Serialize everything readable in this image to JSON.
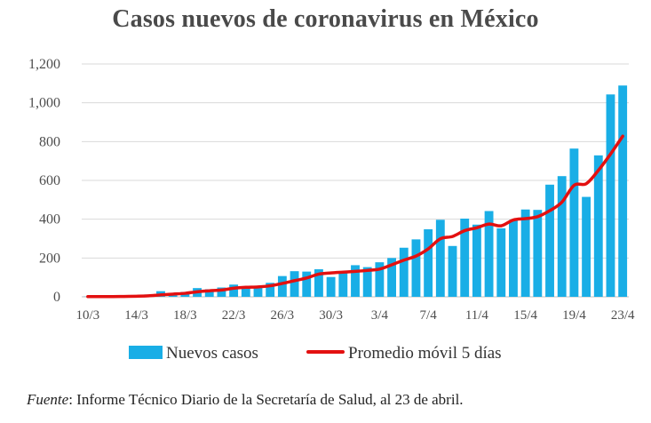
{
  "chart_data": {
    "type": "bar",
    "title": "Casos nuevos de coronavirus en México",
    "xlabel": "",
    "ylabel": "",
    "ylim": [
      0,
      1200
    ],
    "yticks": [
      "0",
      "200",
      "400",
      "600",
      "800",
      "1,000",
      "1,200"
    ],
    "ytick_values": [
      0,
      200,
      400,
      600,
      800,
      1000,
      1200
    ],
    "xtick_labels": [
      "10/3",
      "14/3",
      "18/3",
      "22/3",
      "26/3",
      "30/3",
      "3/4",
      "7/4",
      "11/4",
      "15/4",
      "19/4",
      "23/4"
    ],
    "categories": [
      "10/3",
      "11/3",
      "12/3",
      "13/3",
      "14/3",
      "15/3",
      "16/3",
      "17/3",
      "18/3",
      "19/3",
      "20/3",
      "21/3",
      "22/3",
      "23/3",
      "24/3",
      "25/3",
      "26/3",
      "27/3",
      "28/3",
      "29/3",
      "30/3",
      "31/3",
      "1/4",
      "2/4",
      "3/4",
      "4/4",
      "5/4",
      "6/4",
      "7/4",
      "8/4",
      "9/4",
      "10/4",
      "11/4",
      "12/4",
      "13/4",
      "14/4",
      "15/4",
      "16/4",
      "17/4",
      "18/4",
      "19/4",
      "20/4",
      "21/4",
      "22/4",
      "23/4"
    ],
    "series": [
      {
        "name": "Nuevos casos",
        "type": "bar",
        "color": "#19aee6",
        "values": [
          1,
          1,
          1,
          3,
          6,
          12,
          29,
          19,
          25,
          45,
          39,
          48,
          63,
          52,
          52,
          72,
          107,
          132,
          130,
          142,
          102,
          129,
          163,
          153,
          178,
          200,
          253,
          296,
          348,
          397,
          262,
          403,
          372,
          442,
          353,
          396,
          450,
          448,
          578,
          622,
          764,
          515,
          729,
          1043,
          1089
        ]
      },
      {
        "name": "Promedio móvil 5 días",
        "type": "line",
        "color": "#e31010",
        "values": [
          1,
          1,
          1,
          2,
          3,
          5,
          10,
          14,
          18,
          26,
          31,
          35,
          44,
          49,
          51,
          57,
          69,
          83,
          97,
          117,
          123,
          127,
          131,
          136,
          143,
          165,
          189,
          210,
          247,
          299,
          311,
          341,
          356,
          375,
          366,
          396,
          403,
          413,
          444,
          488,
          575,
          583,
          652,
          736,
          828
        ]
      }
    ]
  },
  "legend": {
    "bars_label": "Nuevos casos",
    "line_label": "Promedio móvil 5 días"
  },
  "source": {
    "label": "Fuente",
    "text": ": Informe Técnico Diario de la Secretaría de Salud, al 23 de abril."
  }
}
